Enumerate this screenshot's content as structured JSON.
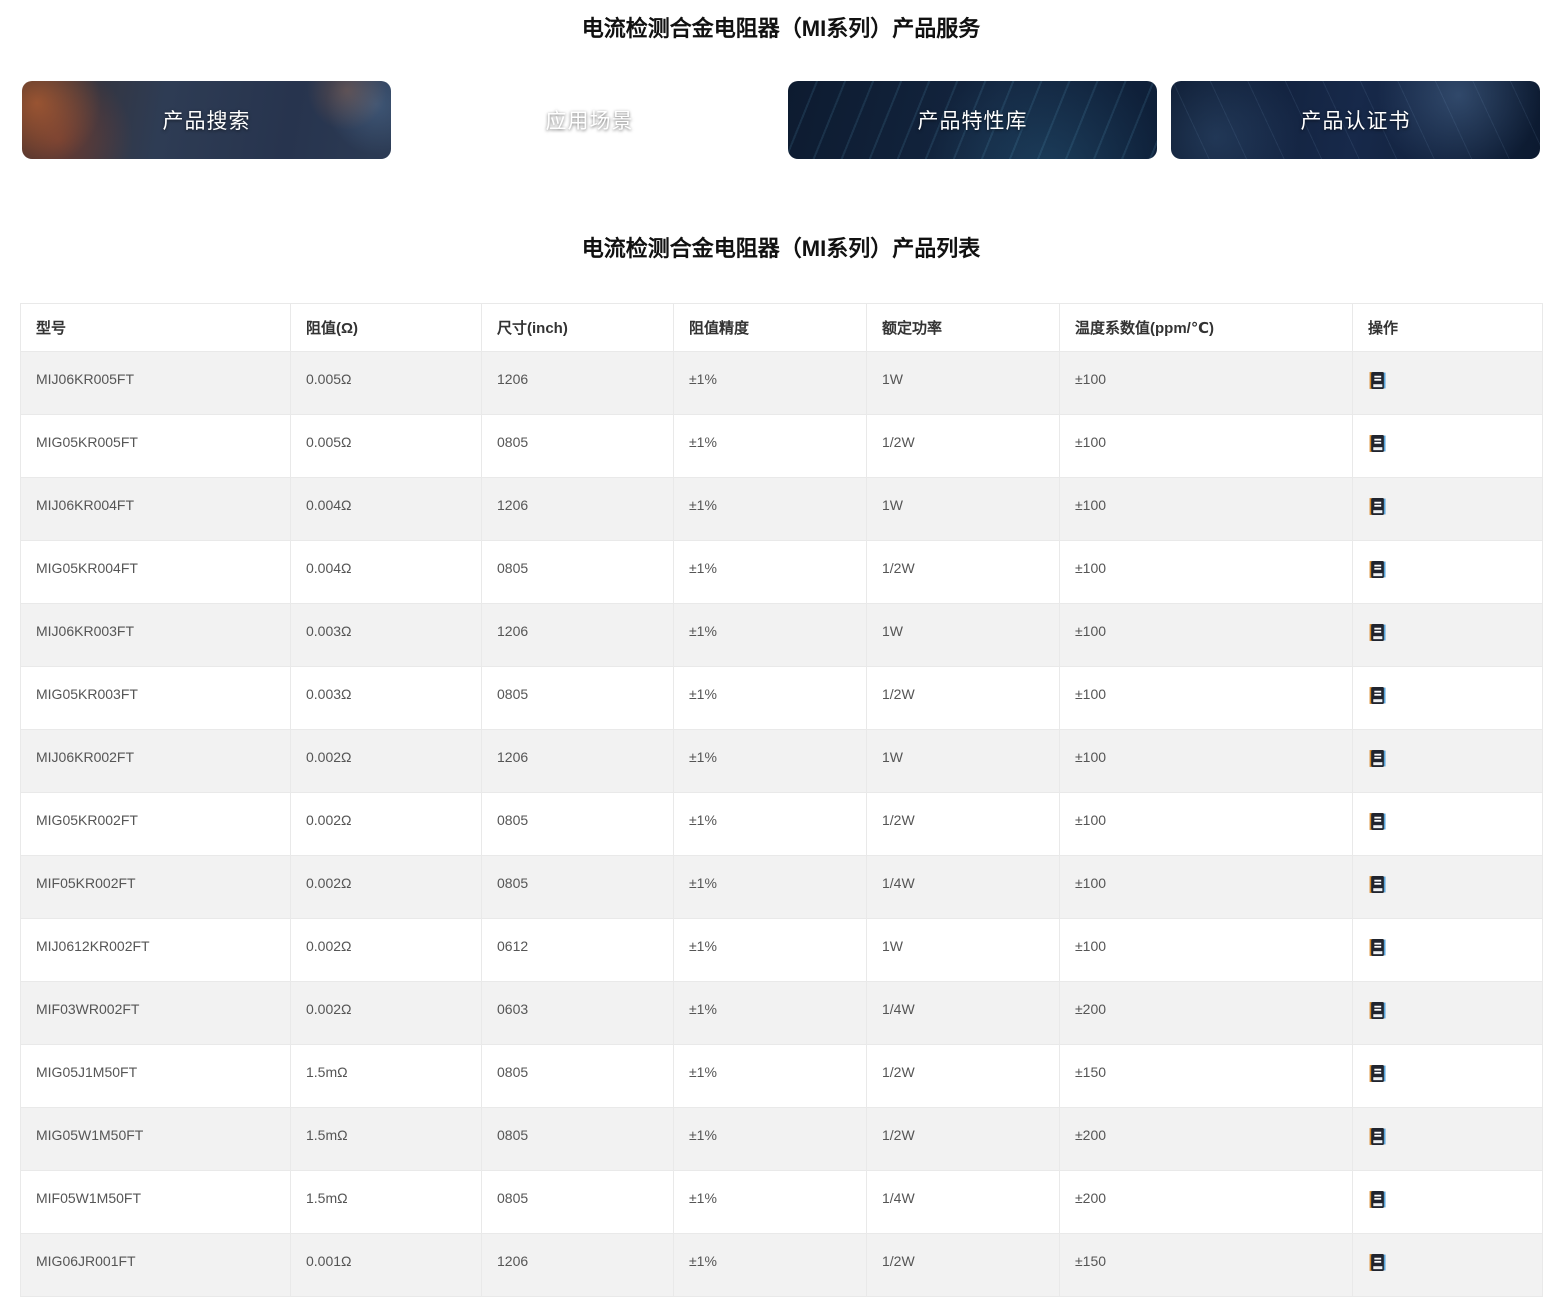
{
  "page": {
    "service_title": "电流检测合金电阻器（MI系列）产品服务",
    "list_title": "电流检测合金电阻器（MI系列）产品列表"
  },
  "banners": [
    {
      "label": "产品搜索"
    },
    {
      "label": "应用场景"
    },
    {
      "label": "产品特性库"
    },
    {
      "label": "产品认证书"
    }
  ],
  "table": {
    "columns": [
      "型号",
      "阻值(Ω)",
      "尺寸(inch)",
      "阻值精度",
      "额定功率",
      "温度系数值(ppm/℃)",
      "操作"
    ],
    "action_icon": "notebook-icon",
    "rows": [
      [
        "MIJ06KR005FT",
        "0.005Ω",
        "1206",
        "±1%",
        "1W",
        "±100"
      ],
      [
        "MIG05KR005FT",
        "0.005Ω",
        "0805",
        "±1%",
        "1/2W",
        "±100"
      ],
      [
        "MIJ06KR004FT",
        "0.004Ω",
        "1206",
        "±1%",
        "1W",
        "±100"
      ],
      [
        "MIG05KR004FT",
        "0.004Ω",
        "0805",
        "±1%",
        "1/2W",
        "±100"
      ],
      [
        "MIJ06KR003FT",
        "0.003Ω",
        "1206",
        "±1%",
        "1W",
        "±100"
      ],
      [
        "MIG05KR003FT",
        "0.003Ω",
        "0805",
        "±1%",
        "1/2W",
        "±100"
      ],
      [
        "MIJ06KR002FT",
        "0.002Ω",
        "1206",
        "±1%",
        "1W",
        "±100"
      ],
      [
        "MIG05KR002FT",
        "0.002Ω",
        "0805",
        "±1%",
        "1/2W",
        "±100"
      ],
      [
        "MIF05KR002FT",
        "0.002Ω",
        "0805",
        "±1%",
        "1/4W",
        "±100"
      ],
      [
        "MIJ0612KR002FT",
        "0.002Ω",
        "0612",
        "±1%",
        "1W",
        "±100"
      ],
      [
        "MIF03WR002FT",
        "0.002Ω",
        "0603",
        "±1%",
        "1/4W",
        "±200"
      ],
      [
        "MIG05J1M50FT",
        "1.5mΩ",
        "0805",
        "±1%",
        "1/2W",
        "±150"
      ],
      [
        "MIG05W1M50FT",
        "1.5mΩ",
        "0805",
        "±1%",
        "1/2W",
        "±200"
      ],
      [
        "MIF05W1M50FT",
        "1.5mΩ",
        "0805",
        "±1%",
        "1/4W",
        "±200"
      ],
      [
        "MIG06JR001FT",
        "0.001Ω",
        "1206",
        "±1%",
        "1/2W",
        "±150"
      ]
    ]
  },
  "colors": {
    "row_alt_background": "#f2f2f2",
    "table_border": "#e9e9e9",
    "banner_text": "#ffffff",
    "banner_navy": "#13253f",
    "header_text": "#333333",
    "cell_text": "#555555"
  }
}
